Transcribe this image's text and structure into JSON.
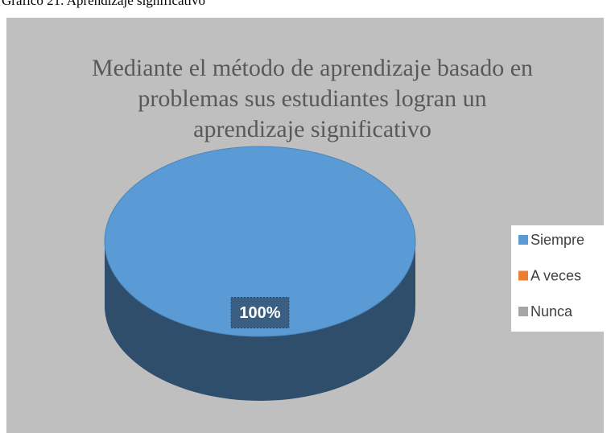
{
  "caption": "Grafico 21. Aprendizaje significativo",
  "chart_data": {
    "type": "pie",
    "title": "Mediante el método de aprendizaje  basado en problemas  sus estudiantes  logran un aprendizaje  significativo",
    "categories": [
      "Siempre",
      "A veces",
      "Nunca"
    ],
    "values": [
      100,
      0,
      0
    ],
    "value_labels": [
      "100%",
      null,
      null
    ],
    "colors": [
      "#5b9bd5",
      "#ed7d31",
      "#a5a5a5"
    ],
    "legend": "right"
  }
}
